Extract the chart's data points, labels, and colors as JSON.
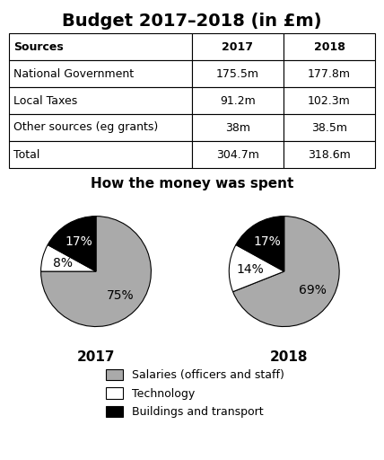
{
  "title": "Budget 2017–2018 (in £m)",
  "table": {
    "headers": [
      "Sources",
      "2017",
      "2018"
    ],
    "rows": [
      [
        "National Government",
        "175.5m",
        "177.8m"
      ],
      [
        "Local Taxes",
        "91.2m",
        "102.3m"
      ],
      [
        "Other sources (eg grants)",
        "38m",
        "38.5m"
      ],
      [
        "Total",
        "304.7m",
        "318.6m"
      ]
    ]
  },
  "pie_title": "How the money was spent",
  "pie_2017": {
    "values": [
      75,
      8,
      17
    ],
    "labels": [
      "75%",
      "8%",
      "17%"
    ],
    "colors": [
      "#aaaaaa",
      "#ffffff",
      "#000000"
    ],
    "year": "2017",
    "startangle": 90,
    "label_colors": [
      "black",
      "black",
      "white"
    ]
  },
  "pie_2018": {
    "values": [
      69,
      14,
      17
    ],
    "labels": [
      "69%",
      "14%",
      "17%"
    ],
    "colors": [
      "#aaaaaa",
      "#ffffff",
      "#000000"
    ],
    "year": "2018",
    "startangle": 90,
    "label_colors": [
      "black",
      "black",
      "white"
    ]
  },
  "legend_labels": [
    "Salaries (officers and staff)",
    "Technology",
    "Buildings and transport"
  ],
  "legend_colors": [
    "#aaaaaa",
    "#ffffff",
    "#000000"
  ],
  "bg_color": "#ffffff",
  "title_fontsize": 14,
  "table_fontsize": 9,
  "pie_label_fontsize": 10,
  "year_fontsize": 11,
  "pie_title_fontsize": 11
}
